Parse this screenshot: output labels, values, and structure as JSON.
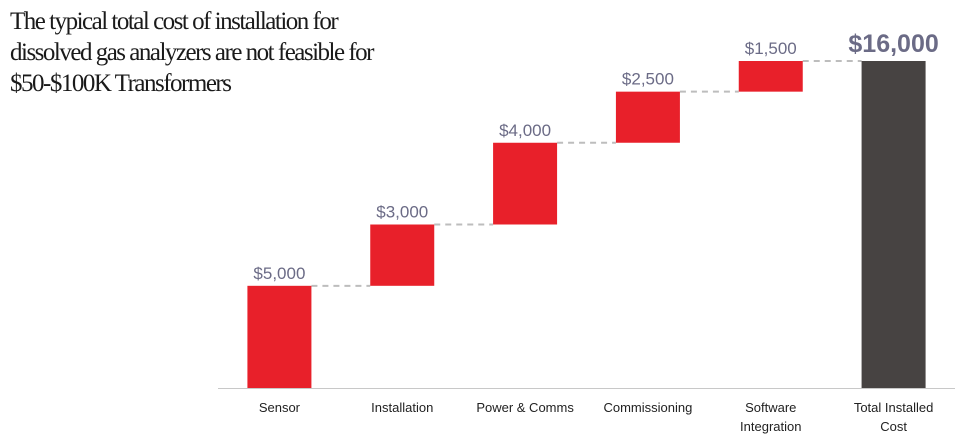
{
  "title": {
    "lines": [
      "The typical total cost of installation for",
      "dissolved gas analyzers are not feasible for",
      "$50-$100K Transformers"
    ]
  },
  "colors": {
    "increase": "#e8202a",
    "total": "#474342",
    "connector": "#bdbdbd",
    "axis": "#c8c8c8"
  },
  "chart_data": {
    "type": "bar",
    "subtype": "waterfall",
    "categories": [
      [
        "Sensor"
      ],
      [
        "Installation"
      ],
      [
        "Power & Comms"
      ],
      [
        "Commissioning"
      ],
      [
        "Software",
        "Integration"
      ],
      [
        "Total Installed",
        "Cost"
      ]
    ],
    "values": [
      5000,
      3000,
      4000,
      2500,
      1500,
      16000
    ],
    "labels": [
      "$5,000",
      "$3,000",
      "$4,000",
      "$2,500",
      "$1,500",
      "$16,000"
    ],
    "is_total": [
      false,
      false,
      false,
      false,
      false,
      true
    ],
    "ylim": [
      0,
      16000
    ],
    "grid": false
  }
}
